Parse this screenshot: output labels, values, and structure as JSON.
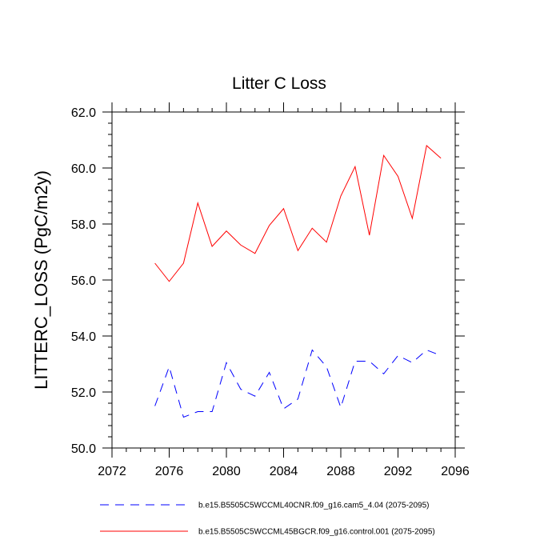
{
  "chart_data": {
    "type": "line",
    "title": "Litter C Loss",
    "xlabel": "",
    "ylabel": "LITTERC_LOSS  (PgC/m2y)",
    "xlim": [
      2072,
      2096
    ],
    "ylim": [
      50.0,
      62.0
    ],
    "x_ticks": [
      2072,
      2076,
      2080,
      2084,
      2088,
      2092,
      2096
    ],
    "x_tick_labels": [
      "2072",
      "2076",
      "2080",
      "2084",
      "2088",
      "2092",
      "2096"
    ],
    "y_ticks": [
      50,
      52,
      54,
      56,
      58,
      60,
      62
    ],
    "y_tick_labels": [
      "50.0",
      "52.0",
      "54.0",
      "56.0",
      "58.0",
      "60.0",
      "62.0"
    ],
    "grid": false,
    "legend_position": "bottom",
    "x": [
      2075,
      2076,
      2077,
      2078,
      2079,
      2080,
      2081,
      2082,
      2083,
      2084,
      2085,
      2086,
      2087,
      2088,
      2089,
      2090,
      2091,
      2092,
      2093,
      2094,
      2095
    ],
    "series": [
      {
        "name": "b.e15.B5505C5WCCML40CNR.f09_g16.cam5_4.04 (2075-2095)",
        "color": "#0000ff",
        "dash": "dashed",
        "values": [
          51.5,
          52.9,
          51.1,
          51.3,
          51.3,
          53.05,
          52.1,
          51.85,
          52.7,
          51.4,
          51.75,
          53.5,
          52.9,
          51.45,
          53.1,
          53.1,
          52.65,
          53.3,
          53.05,
          53.5,
          53.3
        ]
      },
      {
        "name": "b.e15.B5505C5WCCML45BGCR.f09_g16.control.001 (2075-2095)",
        "color": "#ff0000",
        "dash": "solid",
        "values": [
          56.6,
          55.95,
          56.6,
          58.75,
          57.2,
          57.75,
          57.25,
          56.95,
          57.95,
          58.55,
          57.05,
          57.85,
          57.35,
          59.0,
          60.05,
          57.6,
          60.45,
          59.7,
          58.2,
          60.8,
          60.35
        ]
      }
    ]
  }
}
